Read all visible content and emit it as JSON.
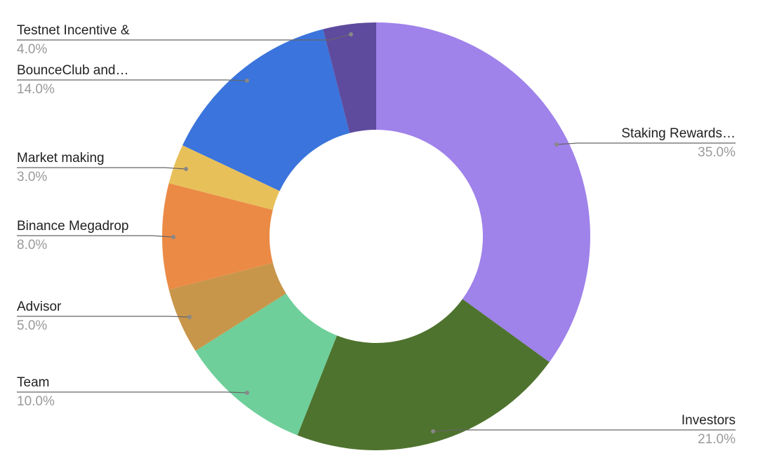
{
  "chart_data": {
    "type": "donut",
    "categories": [
      "Staking Rewards…",
      "Investors",
      "Team",
      "Advisor",
      "Binance Megadrop",
      "Market making",
      "BounceClub and…",
      "Testnet Incentive &"
    ],
    "values": [
      35,
      21,
      10,
      5,
      8,
      3,
      14,
      4
    ],
    "value_labels": [
      "35.0%",
      "21.0%",
      "10.0%",
      "5.0%",
      "8.0%",
      "3.0%",
      "14.0%",
      "4.0%"
    ],
    "colors": [
      "#9f82ea",
      "#4e732e",
      "#6ecf9a",
      "#c8964a",
      "#eb8a45",
      "#e8c05a",
      "#3a74dc",
      "#5e4b9e"
    ]
  }
}
